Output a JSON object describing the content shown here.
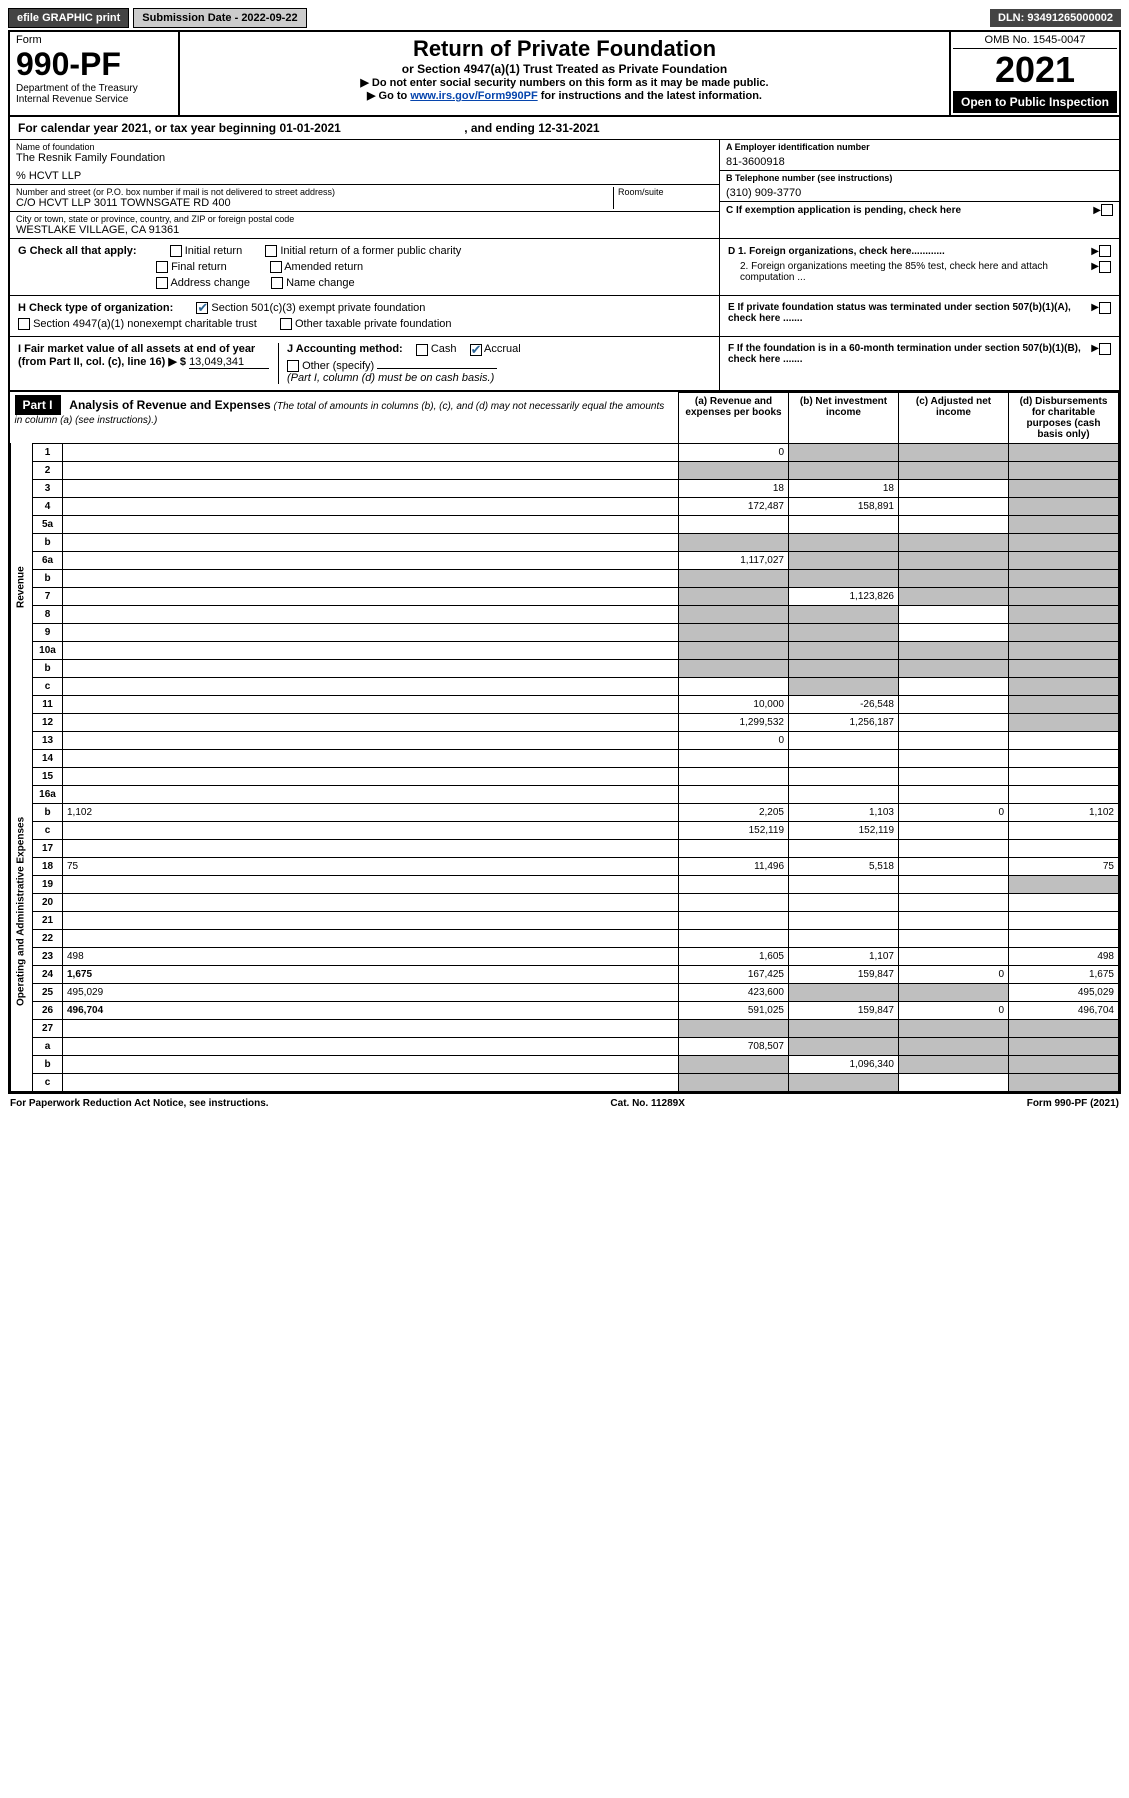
{
  "topbar": {
    "efile": "efile GRAPHIC print",
    "submission_label": "Submission Date - 2022-09-22",
    "dln": "DLN: 93491265000002"
  },
  "header": {
    "form_word": "Form",
    "form_number": "990-PF",
    "dept": "Department of the Treasury",
    "irs": "Internal Revenue Service",
    "title": "Return of Private Foundation",
    "subtitle": "or Section 4947(a)(1) Trust Treated as Private Foundation",
    "note1": "▶ Do not enter social security numbers on this form as it may be made public.",
    "note2_prefix": "▶ Go to ",
    "note2_link": "www.irs.gov/Form990PF",
    "note2_suffix": " for instructions and the latest information.",
    "omb": "OMB No. 1545-0047",
    "tax_year": "2021",
    "open": "Open to Public Inspection"
  },
  "calyear": {
    "text_a": "For calendar year 2021, or tax year beginning ",
    "begin": "01-01-2021",
    "text_b": " , and ending ",
    "end": "12-31-2021"
  },
  "entity": {
    "name_label": "Name of foundation",
    "name": "The Resnik Family Foundation",
    "pct": "% HCVT LLP",
    "addr_label": "Number and street (or P.O. box number if mail is not delivered to street address)",
    "addr": "C/O HCVT LLP 3011 TOWNSGATE RD 400",
    "room_label": "Room/suite",
    "city_label": "City or town, state or province, country, and ZIP or foreign postal code",
    "city": "WESTLAKE VILLAGE, CA  91361",
    "a_label": "A Employer identification number",
    "ein": "81-3600918",
    "b_label": "B Telephone number (see instructions)",
    "phone": "(310) 909-3770",
    "c_label": "C If exemption application is pending, check here"
  },
  "checks": {
    "g_label": "G Check all that apply:",
    "g_items": [
      "Initial return",
      "Initial return of a former public charity",
      "Final return",
      "Amended return",
      "Address change",
      "Name change"
    ],
    "h_label": "H Check type of organization:",
    "h_501": "Section 501(c)(3) exempt private foundation",
    "h_4947": "Section 4947(a)(1) nonexempt charitable trust",
    "h_other": "Other taxable private foundation",
    "i_label": "I Fair market value of all assets at end of year (from Part II, col. (c), line 16) ▶ $",
    "i_value": "13,049,341",
    "j_label": "J Accounting method:",
    "j_cash": "Cash",
    "j_accrual": "Accrual",
    "j_other": "Other (specify)",
    "j_note": "(Part I, column (d) must be on cash basis.)",
    "d_label": "D 1. Foreign organizations, check here............",
    "d2_label": "2. Foreign organizations meeting the 85% test, check here and attach computation ...",
    "e_label": "E If private foundation status was terminated under section 507(b)(1)(A), check here .......",
    "f_label": "F If the foundation is in a 60-month termination under section 507(b)(1)(B), check here ......."
  },
  "part1": {
    "part_label": "Part I",
    "title": "Analysis of Revenue and Expenses",
    "title_note": "(The total of amounts in columns (b), (c), and (d) may not necessarily equal the amounts in column (a) (see instructions).)",
    "col_a": "(a) Revenue and expenses per books",
    "col_b": "(b) Net investment income",
    "col_c": "(c) Adjusted net income",
    "col_d": "(d) Disbursements for charitable purposes (cash basis only)",
    "side_revenue": "Revenue",
    "side_expenses": "Operating and Administrative Expenses",
    "rows": [
      {
        "n": "1",
        "d": "",
        "a": "0",
        "b": "",
        "c": "",
        "grey": [
          "b",
          "c",
          "d"
        ]
      },
      {
        "n": "2",
        "d": "",
        "a": "",
        "b": "",
        "c": "",
        "grey": [
          "a",
          "b",
          "c",
          "d"
        ],
        "bold_not": true
      },
      {
        "n": "3",
        "d": "",
        "a": "18",
        "b": "18",
        "c": "",
        "grey": [
          "d"
        ]
      },
      {
        "n": "4",
        "d": "",
        "a": "172,487",
        "b": "158,891",
        "c": "",
        "grey": [
          "d"
        ]
      },
      {
        "n": "5a",
        "d": "",
        "a": "",
        "b": "",
        "c": "",
        "grey": [
          "d"
        ]
      },
      {
        "n": "b",
        "d": "",
        "a": "",
        "b": "",
        "c": "",
        "grey": [
          "a",
          "b",
          "c",
          "d"
        ]
      },
      {
        "n": "6a",
        "d": "",
        "a": "1,117,027",
        "b": "",
        "c": "",
        "grey": [
          "b",
          "c",
          "d"
        ]
      },
      {
        "n": "b",
        "d": "",
        "a": "",
        "b": "",
        "c": "",
        "grey": [
          "a",
          "b",
          "c",
          "d"
        ]
      },
      {
        "n": "7",
        "d": "",
        "a": "",
        "b": "1,123,826",
        "c": "",
        "grey": [
          "a",
          "c",
          "d"
        ]
      },
      {
        "n": "8",
        "d": "",
        "a": "",
        "b": "",
        "c": "",
        "grey": [
          "a",
          "b",
          "d"
        ]
      },
      {
        "n": "9",
        "d": "",
        "a": "",
        "b": "",
        "c": "",
        "grey": [
          "a",
          "b",
          "d"
        ]
      },
      {
        "n": "10a",
        "d": "",
        "a": "",
        "b": "",
        "c": "",
        "grey": [
          "a",
          "b",
          "c",
          "d"
        ]
      },
      {
        "n": "b",
        "d": "",
        "a": "",
        "b": "",
        "c": "",
        "grey": [
          "a",
          "b",
          "c",
          "d"
        ]
      },
      {
        "n": "c",
        "d": "",
        "a": "",
        "b": "",
        "c": "",
        "grey": [
          "b",
          "d"
        ]
      },
      {
        "n": "11",
        "d": "",
        "a": "10,000",
        "b": "-26,548",
        "c": "",
        "grey": [
          "d"
        ]
      },
      {
        "n": "12",
        "d": "",
        "a": "1,299,532",
        "b": "1,256,187",
        "c": "",
        "grey": [
          "d"
        ],
        "bold": true
      },
      {
        "n": "13",
        "d": "",
        "a": "0",
        "b": "",
        "c": ""
      },
      {
        "n": "14",
        "d": "",
        "a": "",
        "b": "",
        "c": ""
      },
      {
        "n": "15",
        "d": "",
        "a": "",
        "b": "",
        "c": ""
      },
      {
        "n": "16a",
        "d": "",
        "a": "",
        "b": "",
        "c": ""
      },
      {
        "n": "b",
        "d": "1,102",
        "a": "2,205",
        "b": "1,103",
        "c": "0"
      },
      {
        "n": "c",
        "d": "",
        "a": "152,119",
        "b": "152,119",
        "c": ""
      },
      {
        "n": "17",
        "d": "",
        "a": "",
        "b": "",
        "c": ""
      },
      {
        "n": "18",
        "d": "75",
        "a": "11,496",
        "b": "5,518",
        "c": ""
      },
      {
        "n": "19",
        "d": "",
        "a": "",
        "b": "",
        "c": "",
        "grey": [
          "d"
        ]
      },
      {
        "n": "20",
        "d": "",
        "a": "",
        "b": "",
        "c": ""
      },
      {
        "n": "21",
        "d": "",
        "a": "",
        "b": "",
        "c": ""
      },
      {
        "n": "22",
        "d": "",
        "a": "",
        "b": "",
        "c": ""
      },
      {
        "n": "23",
        "d": "498",
        "a": "1,605",
        "b": "1,107",
        "c": ""
      },
      {
        "n": "24",
        "d": "1,675",
        "a": "167,425",
        "b": "159,847",
        "c": "0",
        "bold": true
      },
      {
        "n": "25",
        "d": "495,029",
        "a": "423,600",
        "b": "",
        "c": "",
        "grey": [
          "b",
          "c"
        ]
      },
      {
        "n": "26",
        "d": "496,704",
        "a": "591,025",
        "b": "159,847",
        "c": "0",
        "bold": true
      },
      {
        "n": "27",
        "d": "",
        "a": "",
        "b": "",
        "c": "",
        "grey": [
          "a",
          "b",
          "c",
          "d"
        ]
      },
      {
        "n": "a",
        "d": "",
        "a": "708,507",
        "b": "",
        "c": "",
        "grey": [
          "b",
          "c",
          "d"
        ],
        "bold": true
      },
      {
        "n": "b",
        "d": "",
        "a": "",
        "b": "1,096,340",
        "c": "",
        "grey": [
          "a",
          "c",
          "d"
        ],
        "bold": true
      },
      {
        "n": "c",
        "d": "",
        "a": "",
        "b": "",
        "c": "",
        "grey": [
          "a",
          "b",
          "d"
        ],
        "bold": true
      }
    ]
  },
  "footer": {
    "left": "For Paperwork Reduction Act Notice, see instructions.",
    "mid": "Cat. No. 11289X",
    "right": "Form 990-PF (2021)"
  }
}
